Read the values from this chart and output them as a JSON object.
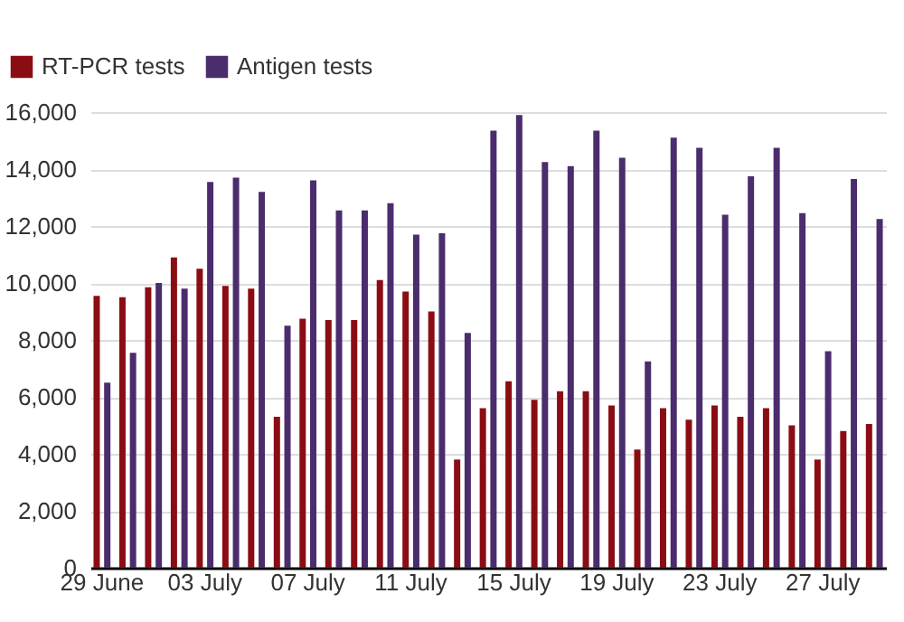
{
  "chart_data": {
    "type": "bar",
    "categories": [
      "29 June",
      null,
      null,
      null,
      "03 July",
      null,
      null,
      null,
      "07 July",
      null,
      null,
      null,
      "11 July",
      null,
      null,
      null,
      "15 July",
      null,
      null,
      null,
      "19 July",
      null,
      null,
      null,
      "23 July",
      null,
      null,
      null,
      "27 July",
      null,
      null
    ],
    "series": [
      {
        "name": "RT-PCR tests",
        "color": "#8b0d14",
        "values": [
          9550,
          9500,
          9850,
          10900,
          10500,
          9900,
          9800,
          5300,
          8750,
          8700,
          8700,
          10100,
          9700,
          9000,
          3800,
          5600,
          6550,
          5900,
          6200,
          6200,
          5700,
          4150,
          5600,
          5200,
          5700,
          5300,
          5600,
          5000,
          3800,
          4800,
          5050
        ]
      },
      {
        "name": "Antigen tests",
        "color": "#4b2d6e",
        "values": [
          6500,
          7550,
          10000,
          9800,
          13550,
          13700,
          13200,
          8500,
          13600,
          12550,
          12550,
          12800,
          11700,
          11750,
          8250,
          15350,
          15900,
          14250,
          14100,
          15350,
          14400,
          7250,
          15100,
          14750,
          12400,
          13750,
          14750,
          12450,
          7600,
          13650,
          12250
        ]
      }
    ],
    "ylim": [
      0,
      16000
    ],
    "yticks": [
      0,
      {
        "value": 2000,
        "label": "2,000"
      },
      {
        "value": 4000,
        "label": "4,000"
      },
      {
        "value": 6000,
        "label": "6,000"
      },
      {
        "value": 8000,
        "label": "8,000"
      },
      {
        "value": 10000,
        "label": "10,000"
      },
      {
        "value": 12000,
        "label": "12,000"
      },
      {
        "value": 14000,
        "label": "14,000"
      },
      {
        "value": 16000,
        "label": "16,000"
      }
    ],
    "grid": "y",
    "legend": "top left"
  }
}
